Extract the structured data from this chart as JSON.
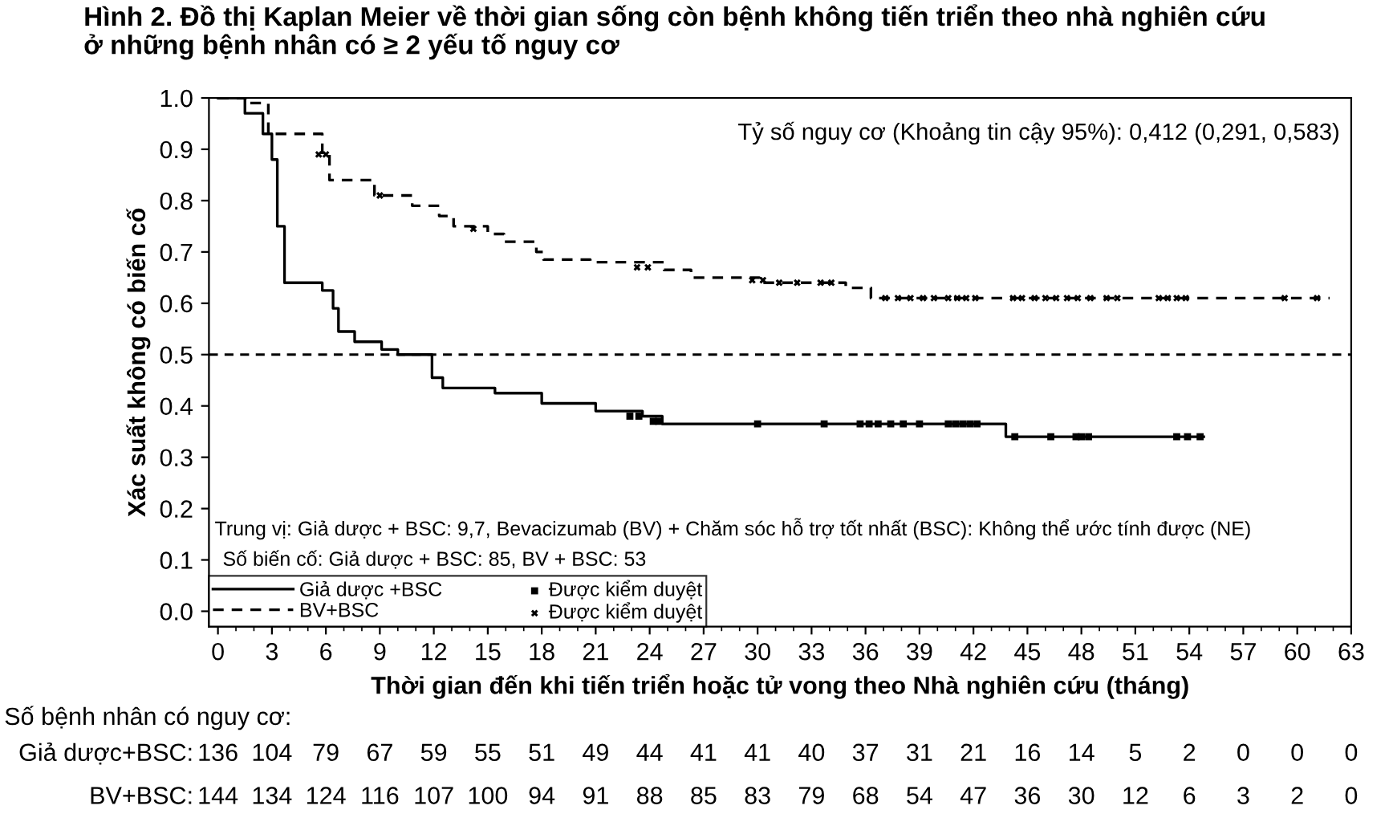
{
  "chart_data": {
    "type": "step",
    "title": "Hình 2. Đồ thị Kaplan Meier về thời gian sống còn bệnh không tiến triển theo nhà nghiên cứu\nở những bệnh nhân có ≥ 2 yếu tố nguy cơ",
    "xlabel": "Thời gian đến khi tiến triển hoặc tử vong theo Nhà nghiên cứu (tháng)",
    "ylabel": "Xác suất không có biến cố",
    "xlim": [
      -0.5,
      63
    ],
    "xticks": [
      0,
      3,
      6,
      9,
      12,
      15,
      18,
      21,
      24,
      27,
      30,
      33,
      36,
      39,
      42,
      45,
      48,
      51,
      54,
      57,
      60,
      63
    ],
    "ylim": [
      -0.03,
      1.0
    ],
    "yticks": [
      {
        "value": 0,
        "label": "0.0"
      },
      0.1,
      0.2,
      0.3,
      0.4,
      0.5,
      0.6,
      0.7,
      0.8,
      0.9,
      {
        "value": 1,
        "label": "1.0"
      }
    ],
    "grid": false,
    "legend": "bottom left",
    "ref_lines": [
      {
        "axis": "y",
        "value": 0.5,
        "color": "#000000",
        "line_style": "dashed"
      }
    ],
    "series": [
      {
        "name": "Giả dược +BSC",
        "color": "#000000",
        "line_style": "solid",
        "x": [
          0,
          1.5,
          2.5,
          3.0,
          3.3,
          3.7,
          5.8,
          6.4,
          6.7,
          7.6,
          9.1,
          10.0,
          11.9,
          12.5,
          15.4,
          18.0,
          21.0,
          23.6,
          24.7,
          43.8,
          54.8
        ],
        "values": [
          1.0,
          0.97,
          0.93,
          0.88,
          0.75,
          0.64,
          0.625,
          0.59,
          0.545,
          0.525,
          0.51,
          0.5,
          0.455,
          0.435,
          0.425,
          0.405,
          0.39,
          0.38,
          0.365,
          0.34,
          0.34
        ]
      },
      {
        "name": "BV+BSC",
        "color": "#000000",
        "line_style": "dashed",
        "x": [
          0,
          1.6,
          2.8,
          5.8,
          6.2,
          8.7,
          10.8,
          12.3,
          13.1,
          15.0,
          15.9,
          17.7,
          18.1,
          20.7,
          24.8,
          26.3,
          30.1,
          34.9,
          36.3,
          61.8
        ],
        "values": [
          1.0,
          0.99,
          0.93,
          0.89,
          0.84,
          0.81,
          0.79,
          0.77,
          0.75,
          0.735,
          0.72,
          0.7,
          0.685,
          0.68,
          0.665,
          0.65,
          0.64,
          0.63,
          0.61,
          0.61
        ]
      },
      {
        "name": "Được kiểm duyệt",
        "type": "scatter",
        "marker": "square",
        "color": "#000000",
        "x": [
          22.9,
          23.4,
          24.2,
          24.5,
          30.0,
          33.7,
          35.7,
          36.2,
          36.7,
          37.4,
          38.1,
          39.0,
          40.6,
          41.0,
          41.4,
          41.8,
          42.2,
          44.3,
          46.3,
          47.7,
          48.0,
          48.4,
          53.3,
          53.9,
          54.6
        ],
        "values": [
          0.38,
          0.38,
          0.37,
          0.37,
          0.365,
          0.365,
          0.365,
          0.365,
          0.365,
          0.365,
          0.365,
          0.365,
          0.365,
          0.365,
          0.365,
          0.365,
          0.365,
          0.34,
          0.34,
          0.34,
          0.34,
          0.34,
          0.34,
          0.34,
          0.34
        ]
      },
      {
        "name": "Được kiểm duyệt",
        "type": "scatter",
        "marker": "cross",
        "color": "#000000",
        "x": [
          5.6,
          6.0,
          9.0,
          14.2,
          23.3,
          23.9,
          29.7,
          30.3,
          31.2,
          32.2,
          33.5,
          34.1,
          37.1,
          37.8,
          38.5,
          39.2,
          39.8,
          40.6,
          41.1,
          41.6,
          42.1,
          44.2,
          44.7,
          45.4,
          46.0,
          46.6,
          47.2,
          47.8,
          48.5,
          49.4,
          50.0,
          52.3,
          52.8,
          53.3,
          53.8,
          59.3,
          61.1
        ],
        "values": [
          0.89,
          0.89,
          0.81,
          0.745,
          0.67,
          0.67,
          0.645,
          0.645,
          0.64,
          0.64,
          0.64,
          0.64,
          0.61,
          0.61,
          0.61,
          0.61,
          0.61,
          0.61,
          0.61,
          0.61,
          0.61,
          0.61,
          0.61,
          0.61,
          0.61,
          0.61,
          0.61,
          0.61,
          0.61,
          0.61,
          0.61,
          0.61,
          0.61,
          0.61,
          0.61,
          0.61,
          0.61
        ]
      }
    ],
    "annotations": [
      "Tỷ số nguy cơ (Khoảng tin cậy 95%): 0,412 (0,291, 0,583)",
      "Trung vị: Giả dược + BSC: 9,7, Bevacizumab (BV) + Chăm sóc hỗ trợ tốt nhất (BSC): Không thể ước tính được (NE)",
      "Số biến cố: Giả dược + BSC: 85, BV + BSC: 53",
      "Số bệnh nhân có nguy cơ:",
      "Giả dược+BSC:",
      "136 104 79 67 59 55 51 49 44 41 41 40 37 31 21 16 14 5 2 0 0 0",
      "BV+BSC:",
      "144 134 124 116 107 100 94 91 88 85 83 79 68 54 47 36 30 12 6 3 2 0"
    ]
  }
}
